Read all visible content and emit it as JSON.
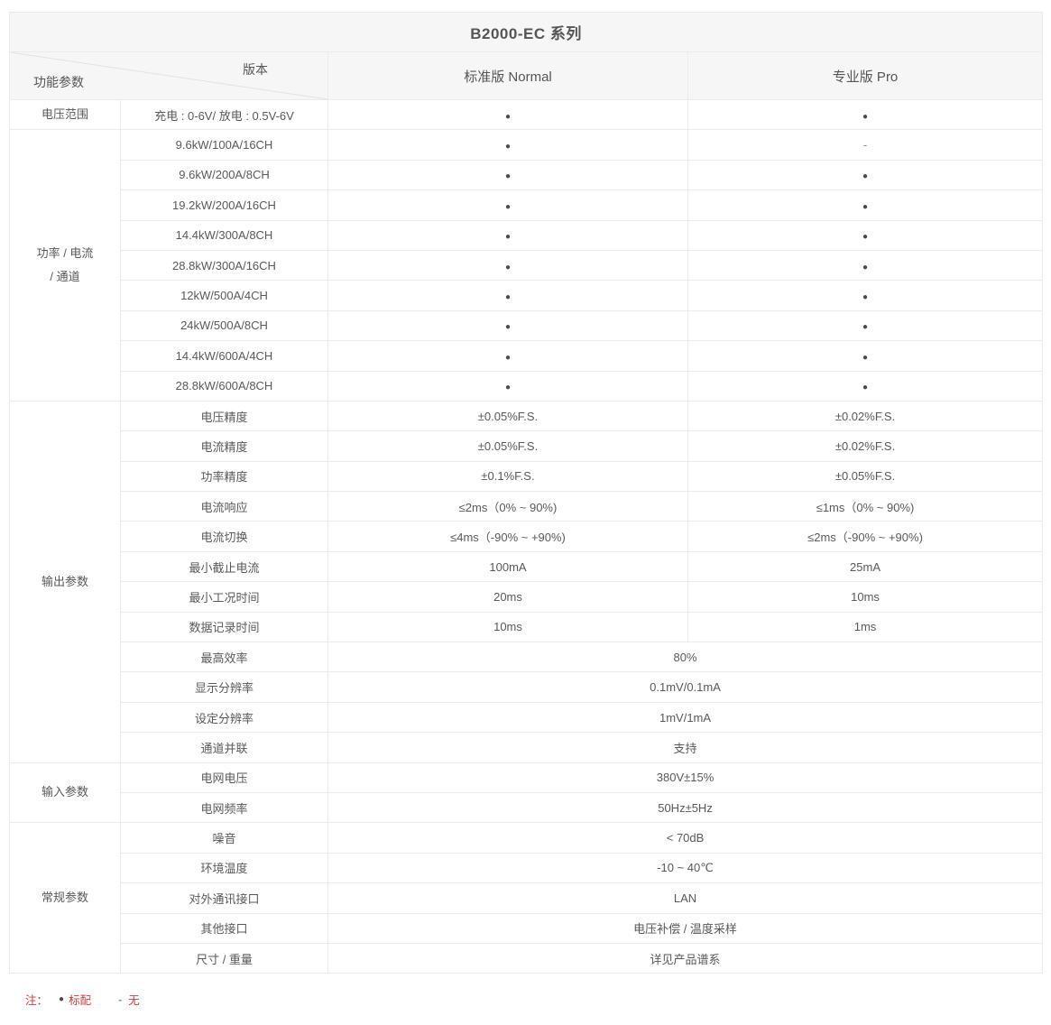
{
  "title": "B2000-EC 系列",
  "header": {
    "corner_top": "版本",
    "corner_bottom": "功能参数",
    "col_normal": "标准版 Normal",
    "col_pro": "专业版 Pro"
  },
  "symbols": {
    "bullet": "●",
    "dash": "-"
  },
  "colors": {
    "header_bg": "#f6f6f6",
    "border": "#ebebeb",
    "text": "#595959",
    "bullet": "#4a4a4a",
    "note_red": "#d23b3b"
  },
  "sections": [
    {
      "category_lines": [
        "电压范围"
      ],
      "rows": [
        {
          "param": "充电 : 0-6V/ 放电 : 0.5V-6V",
          "normal": "●",
          "pro": "●"
        }
      ]
    },
    {
      "category_lines": [
        "功率 / 电流",
        "/ 通道"
      ],
      "rows": [
        {
          "param": "9.6kW/100A/16CH",
          "normal": "●",
          "pro": "-"
        },
        {
          "param": "9.6kW/200A/8CH",
          "normal": "●",
          "pro": "●"
        },
        {
          "param": "19.2kW/200A/16CH",
          "normal": "●",
          "pro": "●"
        },
        {
          "param": "14.4kW/300A/8CH",
          "normal": "●",
          "pro": "●"
        },
        {
          "param": "28.8kW/300A/16CH",
          "normal": "●",
          "pro": "●"
        },
        {
          "param": "12kW/500A/4CH",
          "normal": "●",
          "pro": "●"
        },
        {
          "param": "24kW/500A/8CH",
          "normal": "●",
          "pro": "●"
        },
        {
          "param": "14.4kW/600A/4CH",
          "normal": "●",
          "pro": "●"
        },
        {
          "param": "28.8kW/600A/8CH",
          "normal": "●",
          "pro": "●"
        }
      ]
    },
    {
      "category_lines": [
        "输出参数"
      ],
      "rows": [
        {
          "param": "电压精度",
          "normal": "±0.05%F.S.",
          "pro": "±0.02%F.S."
        },
        {
          "param": "电流精度",
          "normal": "±0.05%F.S.",
          "pro": "±0.02%F.S."
        },
        {
          "param": "功率精度",
          "normal": "±0.1%F.S.",
          "pro": "±0.05%F.S."
        },
        {
          "param": "电流响应",
          "normal": "≤2ms（0% ~ 90%)",
          "pro": "≤1ms（0% ~ 90%)"
        },
        {
          "param": "电流切换",
          "normal": "≤4ms（-90% ~ +90%)",
          "pro": "≤2ms（-90% ~ +90%)"
        },
        {
          "param": "最小截止电流",
          "normal": "100mA",
          "pro": "25mA"
        },
        {
          "param": "最小工况时间",
          "normal": "20ms",
          "pro": "10ms"
        },
        {
          "param": "数据记录时间",
          "normal": "10ms",
          "pro": "1ms"
        },
        {
          "param": "最高效率",
          "merged": true,
          "value": "80%"
        },
        {
          "param": "显示分辨率",
          "merged": true,
          "value": "0.1mV/0.1mA"
        },
        {
          "param": "设定分辨率",
          "merged": true,
          "value": "1mV/1mA"
        },
        {
          "param": "通道并联",
          "merged": true,
          "value": "支持"
        }
      ]
    },
    {
      "category_lines": [
        "输入参数"
      ],
      "rows": [
        {
          "param": "电网电压",
          "merged": true,
          "value": "380V±15%"
        },
        {
          "param": "电网频率",
          "merged": true,
          "value": "50Hz±5Hz"
        }
      ]
    },
    {
      "category_lines": [
        "常规参数"
      ],
      "rows": [
        {
          "param": "噪音",
          "merged": true,
          "value": "< 70dB"
        },
        {
          "param": "环境温度",
          "merged": true,
          "value": "-10 ~ 40℃"
        },
        {
          "param": "对外通讯接口",
          "merged": true,
          "value": "LAN"
        },
        {
          "param": "其他接口",
          "merged": true,
          "value": "电压补偿 / 温度采样"
        },
        {
          "param": "尺寸 / 重量",
          "merged": true,
          "value": "详见产品谱系"
        }
      ]
    }
  ],
  "note": {
    "prefix": "注：",
    "bullet_symbol": "●",
    "bullet_label": "标配",
    "dash_symbol": "-",
    "dash_label": "无"
  }
}
